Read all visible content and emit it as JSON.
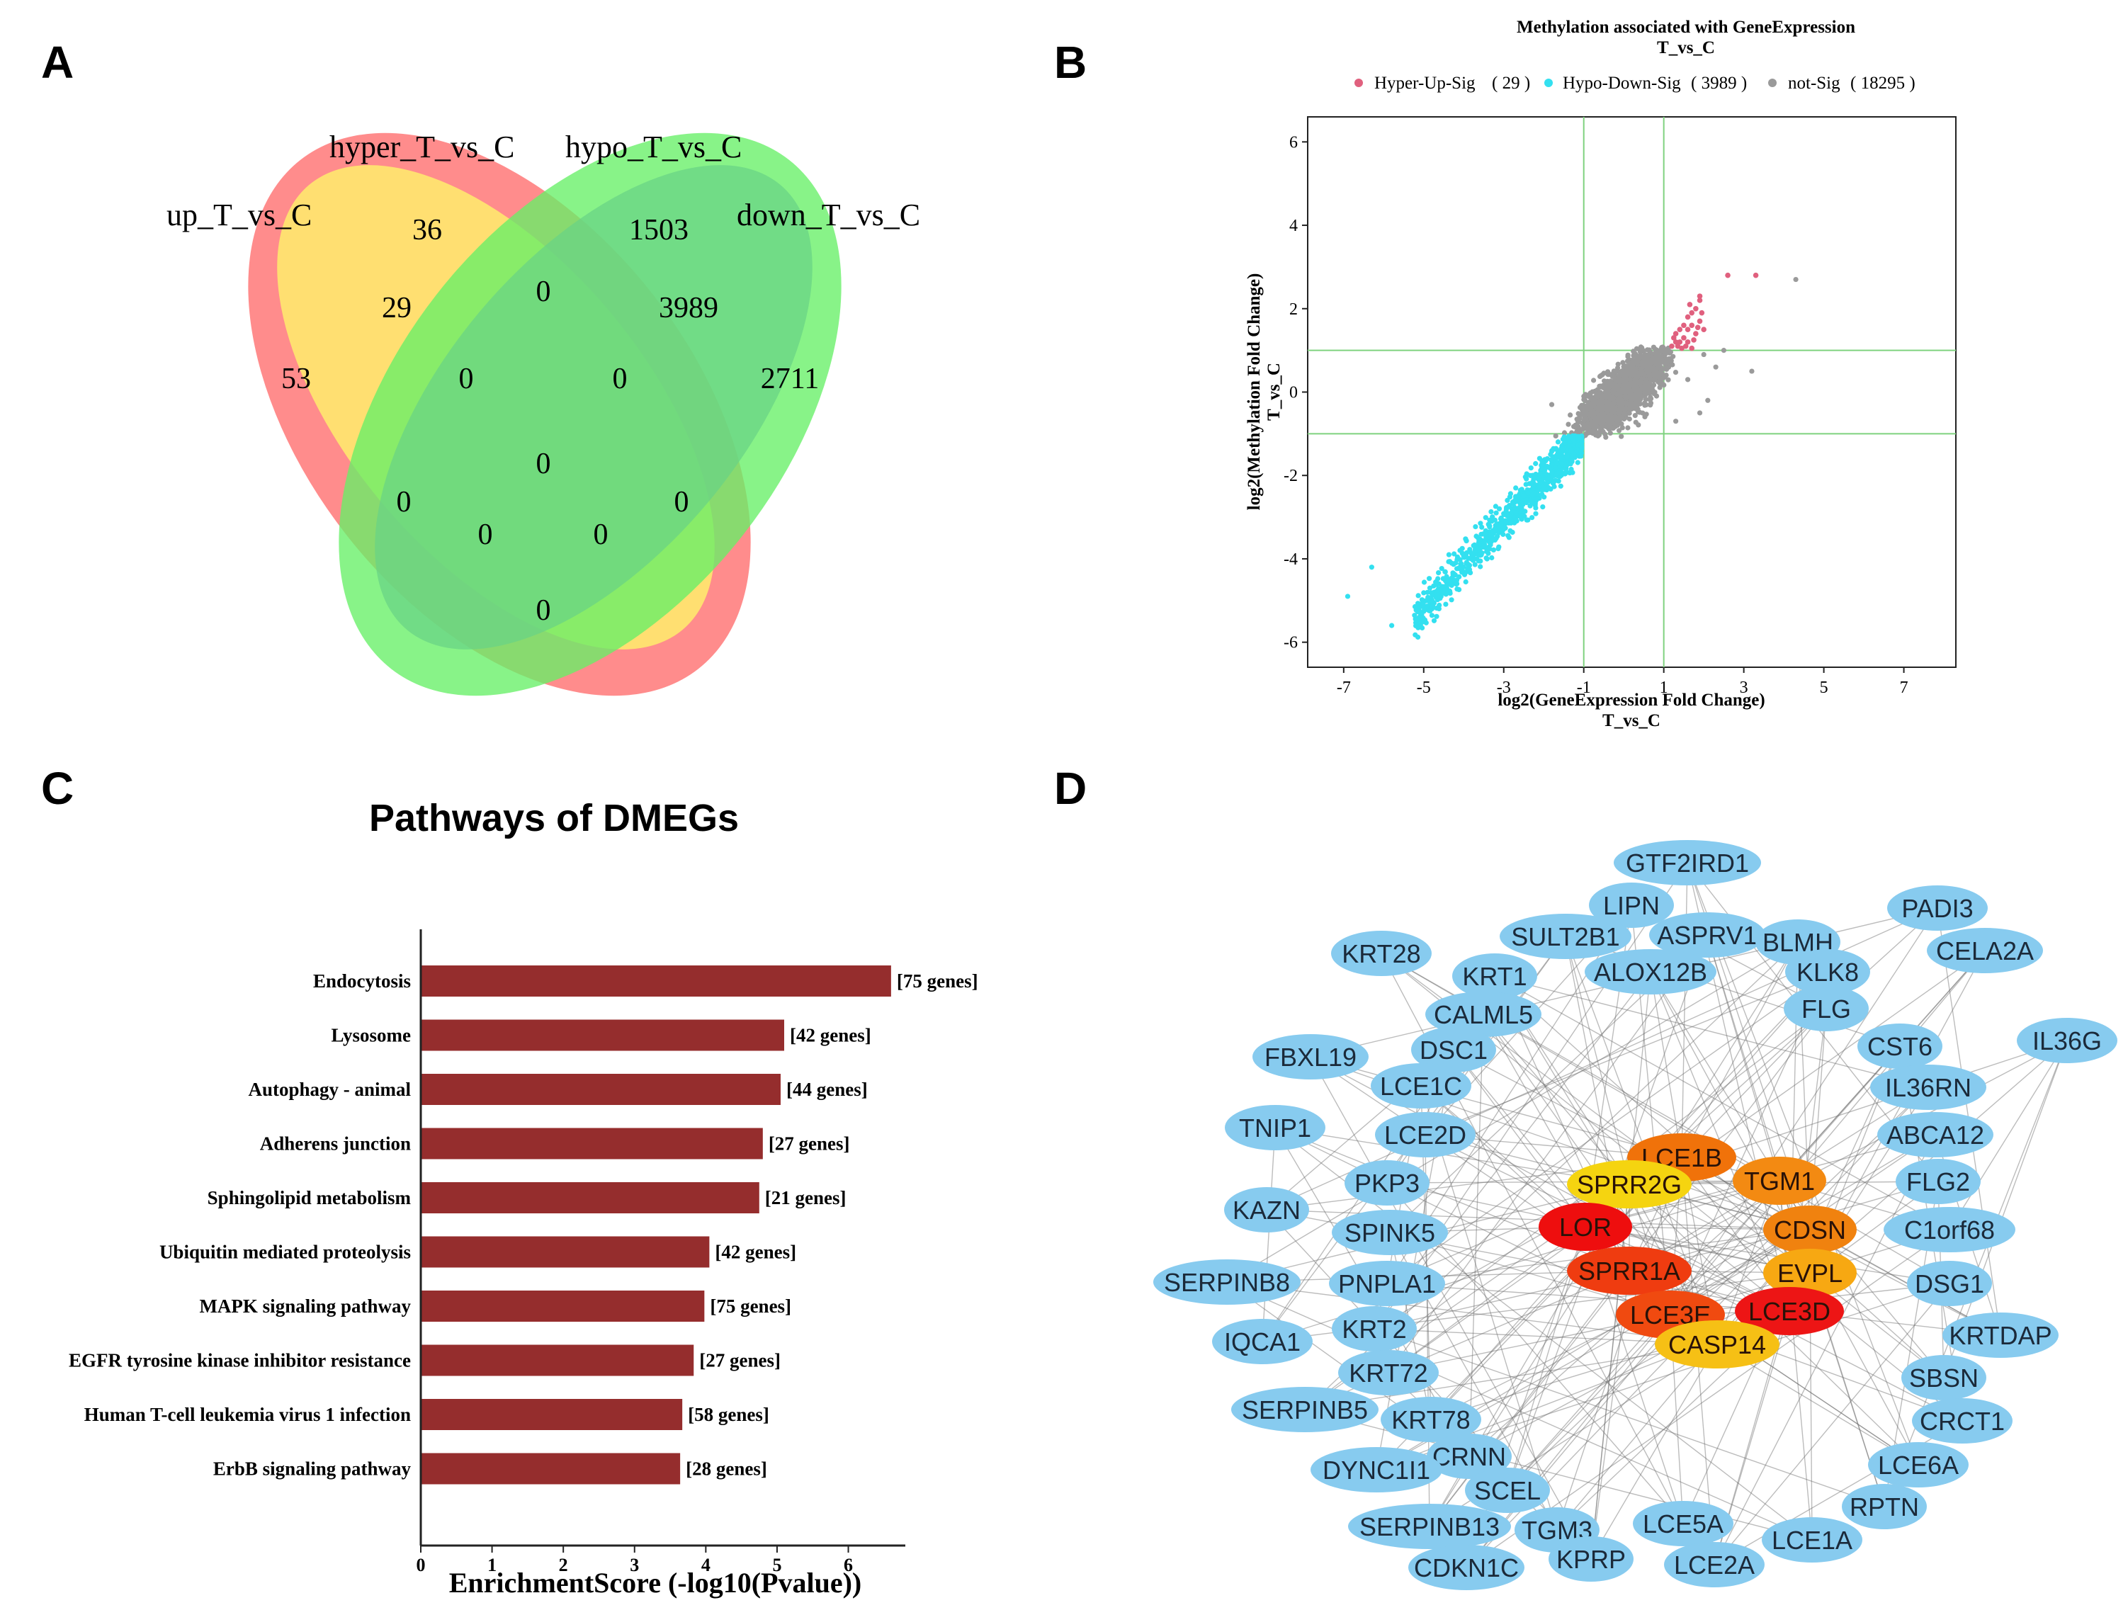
{
  "panel_letters": [
    "A",
    "B",
    "C",
    "D"
  ],
  "chart_data": [
    {
      "type": "venn",
      "panel": "A",
      "sets": [
        {
          "name": "up_T_vs_C",
          "color": "#ff6b6b"
        },
        {
          "name": "hyper_T_vs_C",
          "color": "#ffff66"
        },
        {
          "name": "hypo_T_vs_C",
          "color": "#6e6ef0"
        },
        {
          "name": "down_T_vs_C",
          "color": "#66f066"
        }
      ],
      "regions": [
        {
          "sets": [
            "up"
          ],
          "value": 53
        },
        {
          "sets": [
            "hyper"
          ],
          "value": 36
        },
        {
          "sets": [
            "hypo"
          ],
          "value": 1503
        },
        {
          "sets": [
            "down"
          ],
          "value": 2711
        },
        {
          "sets": [
            "up",
            "hyper"
          ],
          "value": 29
        },
        {
          "sets": [
            "hyper",
            "hypo"
          ],
          "value": 0
        },
        {
          "sets": [
            "hypo",
            "down"
          ],
          "value": 3989
        },
        {
          "sets": [
            "up",
            "hyper",
            "hypo"
          ],
          "value": 0
        },
        {
          "sets": [
            "hyper",
            "hypo",
            "down"
          ],
          "value": 0
        },
        {
          "sets": [
            "up",
            "hyper",
            "hypo",
            "down"
          ],
          "value": 0
        },
        {
          "sets": [
            "up",
            "hypo"
          ],
          "value": 0
        },
        {
          "sets": [
            "hyper",
            "down"
          ],
          "value": 0
        },
        {
          "sets": [
            "up",
            "hypo",
            "down"
          ],
          "value": 0
        },
        {
          "sets": [
            "up",
            "hyper",
            "down"
          ],
          "value": 0
        },
        {
          "sets": [
            "up",
            "down"
          ],
          "value": 0
        }
      ]
    },
    {
      "type": "scatter",
      "panel": "B",
      "title": "Methylation associated with GeneExpression",
      "subtitle": "T_vs_C",
      "xlabel": "log2(GeneExpression Fold Change)",
      "xlabel2": "T_vs_C",
      "ylabel": "log2(Methylation Fold Change)",
      "ylabel2": "T_vs_C",
      "xlim": [
        -7.9,
        8.3
      ],
      "ylim": [
        -6.6,
        6.6
      ],
      "xticks": [
        -7,
        -5,
        -3,
        -1,
        1,
        3,
        5,
        7
      ],
      "yticks": [
        -6,
        -4,
        -2,
        0,
        2,
        4,
        6
      ],
      "thresholds": {
        "x": [
          -1,
          1
        ],
        "y": [
          -1,
          1
        ],
        "color": "#7fd27f"
      },
      "legend_position": "top",
      "series": [
        {
          "name": "Hyper-Up-Sig",
          "count": "( 29 )",
          "color": "#e0607e",
          "points": [
            [
              1.2,
              1.1
            ],
            [
              1.3,
              1.2
            ],
            [
              1.4,
              1.5
            ],
            [
              1.5,
              1.3
            ],
            [
              1.6,
              1.8
            ],
            [
              1.7,
              1.6
            ],
            [
              1.8,
              2.0
            ],
            [
              1.9,
              2.2
            ],
            [
              1.95,
              1.9
            ],
            [
              1.6,
              1.2
            ],
            [
              1.5,
              1.6
            ],
            [
              1.4,
              1.2
            ],
            [
              1.8,
              1.4
            ],
            [
              1.7,
              1.9
            ],
            [
              1.3,
              1.4
            ],
            [
              1.9,
              1.7
            ],
            [
              1.6,
              1.5
            ],
            [
              1.55,
              1.1
            ],
            [
              1.75,
              1.25
            ],
            [
              1.85,
              1.55
            ],
            [
              1.45,
              1.05
            ],
            [
              1.25,
              1.3
            ],
            [
              1.65,
              2.1
            ],
            [
              2.0,
              1.5
            ],
            [
              1.35,
              1.1
            ],
            [
              1.9,
              2.3
            ],
            [
              2.6,
              2.8
            ],
            [
              3.3,
              2.8
            ],
            [
              1.7,
              1.05
            ]
          ]
        },
        {
          "name": "Hypo-Down-Sig",
          "count": "( 3989 )",
          "color": "#33e0f0"
        },
        {
          "name": "not-Sig",
          "count": "( 18295 )",
          "color": "#9a9a9a",
          "outliers": [
            [
              2.3,
              0.6
            ],
            [
              2.1,
              -0.2
            ],
            [
              1.6,
              0.3
            ],
            [
              3.2,
              0.5
            ],
            [
              4.3,
              2.7
            ],
            [
              2.0,
              0.9
            ],
            [
              1.3,
              -0.7
            ],
            [
              2.5,
              1.0
            ],
            [
              -1.8,
              -0.3
            ],
            [
              1.9,
              -0.5
            ]
          ]
        }
      ]
    },
    {
      "type": "bar",
      "panel": "C",
      "orientation": "horizontal",
      "title": "Pathways of DMEGs",
      "xlabel": "EnrichmentScore (-log10(Pvalue))",
      "xlim": [
        0,
        6.8
      ],
      "xticks": [
        0,
        1,
        2,
        3,
        4,
        5,
        6
      ],
      "bar_color": "#952d2d",
      "categories": [
        "Endocytosis",
        "Lysosome",
        "Autophagy - animal",
        "Adherens junction",
        "Sphingolipid metabolism",
        "Ubiquitin mediated proteolysis",
        "MAPK signaling pathway",
        "EGFR tyrosine kinase inhibitor resistance",
        "Human T-cell leukemia virus 1 infection",
        "ErbB signaling pathway"
      ],
      "values": [
        6.6,
        5.1,
        5.05,
        4.8,
        4.75,
        4.05,
        3.98,
        3.83,
        3.67,
        3.64
      ],
      "labels": [
        "[75 genes]",
        "[42 genes]",
        "[44 genes]",
        "[27 genes]",
        "[21 genes]",
        "[42 genes]",
        "[75 genes]",
        "[27 genes]",
        "[58 genes]",
        "[28 genes]"
      ]
    },
    {
      "type": "network",
      "panel": "D",
      "hub_nodes": [
        {
          "label": "LCE1B",
          "color": "#f0720a"
        },
        {
          "label": "SPRR2G",
          "color": "#f5d410"
        },
        {
          "label": "TGM1",
          "color": "#f38a12"
        },
        {
          "label": "LOR",
          "color": "#ee0e0e"
        },
        {
          "label": "CDSN",
          "color": "#f0820f"
        },
        {
          "label": "SPRR1A",
          "color": "#ef3c10"
        },
        {
          "label": "EVPL",
          "color": "#f7a812"
        },
        {
          "label": "LCE3E",
          "color": "#f04a10"
        },
        {
          "label": "LCE3D",
          "color": "#ed1515"
        },
        {
          "label": "CASP14",
          "color": "#f6c015"
        }
      ],
      "outer_color": "#87cbef",
      "outer_nodes": [
        "GTF2IRD1",
        "LIPN",
        "ASPRV1",
        "SULT2B1",
        "BLMH",
        "PADI3",
        "KRT28",
        "KRT1",
        "ALOX12B",
        "KLK8",
        "CELA2A",
        "CALML5",
        "FLG",
        "DSC1",
        "CST6",
        "IL36G",
        "FBXL19",
        "LCE1C",
        "IL36RN",
        "TNIP1",
        "LCE2D",
        "ABCA12",
        "PKP3",
        "FLG2",
        "KAZN",
        "SPINK5",
        "C1orf68",
        "SERPINB8",
        "PNPLA1",
        "DSG1",
        "IQCA1",
        "KRT2",
        "KRTDAP",
        "KRT72",
        "SBSN",
        "SERPINB5",
        "KRT78",
        "CRCT1",
        "CRNN",
        "LCE6A",
        "DYNC1I1",
        "SCEL",
        "RPTN",
        "SERPINB13",
        "TGM3",
        "LCE5A",
        "LCE1A",
        "KPRP",
        "LCE2A",
        "CDKN1C"
      ]
    }
  ]
}
